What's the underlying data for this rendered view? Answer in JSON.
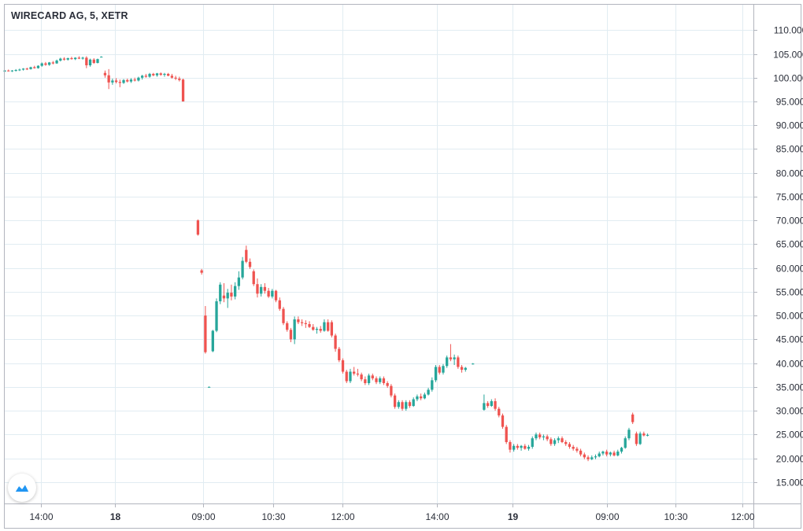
{
  "title": "WIRECARD AG, 5, XETR",
  "colors": {
    "up": "#26a69a",
    "down": "#ef5350",
    "grid": "#e1ecf2",
    "axis_line": "#b2b5be",
    "text": "#2a2e39",
    "logo": "#2196f3"
  },
  "logo_icon": "tradingview-logo-icon",
  "chart_data": {
    "type": "candlestick",
    "title": "WIRECARD AG, 5, XETR",
    "y_axis": {
      "position": "right",
      "range": [
        10.5,
        115.5
      ],
      "ticks": [
        "110.000",
        "105.000",
        "100.000",
        "95.000",
        "90.000",
        "85.000",
        "80.000",
        "75.000",
        "70.000",
        "65.000",
        "60.000",
        "55.000",
        "50.000",
        "45.000",
        "40.000",
        "35.000",
        "30.000",
        "25.000",
        "20.000",
        "15.000"
      ]
    },
    "x_axis": {
      "ticks": [
        "14:00",
        "18",
        "09:00",
        "10:30",
        "12:00",
        "14:00",
        "19",
        "09:00",
        "10:30",
        "12:00"
      ],
      "bold_ticks": [
        "18",
        "19"
      ]
    },
    "grid": true,
    "candles": [
      [
        101.3,
        101.6,
        101.2,
        101.5
      ],
      [
        101.5,
        101.7,
        101.3,
        101.4
      ],
      [
        101.4,
        101.6,
        101.2,
        101.5
      ],
      [
        101.5,
        101.8,
        101.3,
        101.6
      ],
      [
        101.6,
        101.9,
        101.4,
        101.7
      ],
      [
        101.7,
        102.0,
        101.5,
        101.9
      ],
      [
        101.9,
        102.1,
        101.6,
        101.8
      ],
      [
        101.8,
        102.3,
        101.7,
        102.2
      ],
      [
        102.2,
        102.5,
        101.9,
        102.0
      ],
      [
        102.0,
        102.6,
        101.9,
        102.5
      ],
      [
        102.5,
        103.2,
        102.3,
        103.0
      ],
      [
        103.0,
        103.3,
        102.5,
        102.7
      ],
      [
        102.7,
        103.3,
        102.5,
        103.2
      ],
      [
        103.2,
        103.5,
        102.8,
        103.0
      ],
      [
        103.0,
        103.8,
        102.9,
        103.6
      ],
      [
        103.6,
        104.2,
        103.4,
        104.0
      ],
      [
        104.0,
        104.3,
        103.6,
        103.8
      ],
      [
        103.8,
        104.2,
        103.6,
        104.1
      ],
      [
        104.1,
        104.4,
        103.8,
        103.9
      ],
      [
        103.9,
        104.3,
        103.7,
        104.2
      ],
      [
        104.2,
        104.5,
        103.9,
        104.0
      ],
      [
        104.0,
        104.4,
        103.8,
        104.2
      ],
      [
        104.2,
        104.5,
        102.0,
        102.6
      ],
      [
        102.6,
        104.0,
        102.3,
        103.8
      ],
      [
        103.8,
        104.1,
        102.9,
        103.1
      ],
      [
        103.1,
        104.0,
        103.0,
        103.9
      ],
      [
        104.4,
        104.5,
        104.3,
        104.4
      ],
      [
        101.0,
        101.5,
        100.0,
        100.5
      ],
      [
        100.5,
        101.8,
        97.6,
        99.0
      ],
      [
        99.0,
        99.8,
        98.5,
        99.4
      ],
      [
        99.4,
        99.9,
        98.8,
        99.1
      ],
      [
        99.1,
        99.6,
        98.0,
        98.9
      ],
      [
        98.9,
        99.7,
        98.7,
        99.5
      ],
      [
        99.5,
        99.8,
        99.0,
        99.2
      ],
      [
        99.2,
        99.9,
        98.9,
        99.6
      ],
      [
        99.6,
        100.0,
        99.2,
        99.4
      ],
      [
        99.4,
        100.2,
        99.2,
        100.0
      ],
      [
        100.0,
        100.6,
        99.6,
        100.4
      ],
      [
        100.4,
        100.8,
        100.0,
        100.2
      ],
      [
        100.2,
        101.0,
        100.0,
        100.8
      ],
      [
        100.8,
        101.0,
        100.3,
        100.5
      ],
      [
        100.5,
        101.0,
        100.2,
        100.9
      ],
      [
        100.9,
        101.1,
        100.4,
        100.6
      ],
      [
        100.6,
        101.0,
        100.2,
        100.8
      ],
      [
        100.8,
        101.0,
        100.3,
        100.4
      ],
      [
        100.4,
        100.8,
        99.8,
        100.0
      ],
      [
        100.0,
        100.4,
        99.5,
        99.8
      ],
      [
        99.8,
        100.2,
        99.2,
        99.5
      ],
      [
        99.6,
        99.8,
        95.0,
        95.0
      ],
      null,
      null,
      null,
      [
        70.0,
        70.2,
        66.8,
        67.0
      ],
      [
        59.5,
        59.8,
        58.6,
        59.0
      ],
      [
        50.0,
        52.0,
        42.0,
        42.3
      ],
      [
        35.0,
        35.1,
        34.9,
        35.0
      ],
      [
        42.5,
        47.0,
        42.3,
        46.8
      ],
      [
        46.8,
        53.6,
        46.5,
        53.0
      ],
      [
        53.0,
        57.0,
        52.4,
        56.5
      ],
      [
        54.2,
        56.8,
        52.8,
        53.6
      ],
      [
        53.6,
        55.6,
        51.6,
        54.8
      ],
      [
        54.8,
        56.5,
        53.2,
        54.0
      ],
      [
        54.0,
        57.0,
        53.4,
        56.2
      ],
      [
        56.2,
        59.3,
        55.4,
        58.0
      ],
      [
        58.0,
        62.3,
        57.6,
        61.5
      ],
      [
        63.8,
        64.7,
        61.0,
        61.3
      ],
      [
        61.3,
        62.0,
        59.8,
        60.2
      ],
      [
        59.3,
        59.7,
        56.2,
        56.6
      ],
      [
        56.6,
        57.8,
        53.8,
        54.6
      ],
      [
        54.6,
        56.6,
        54.0,
        56.0
      ],
      [
        56.0,
        56.8,
        54.6,
        55.2
      ],
      [
        55.2,
        55.8,
        53.7,
        54.0
      ],
      [
        54.0,
        55.6,
        53.6,
        55.2
      ],
      [
        55.2,
        55.4,
        52.8,
        53.2
      ],
      [
        53.2,
        53.8,
        51.0,
        51.4
      ],
      [
        51.4,
        51.8,
        48.0,
        48.4
      ],
      [
        48.4,
        48.8,
        46.6,
        47.0
      ],
      [
        47.0,
        47.4,
        44.4,
        45.0
      ],
      [
        45.0,
        49.8,
        44.0,
        49.2
      ],
      [
        49.2,
        49.8,
        48.2,
        48.6
      ],
      [
        48.6,
        49.2,
        47.8,
        48.4
      ],
      [
        48.4,
        49.0,
        47.4,
        48.2
      ],
      [
        48.2,
        48.8,
        47.4,
        47.6
      ],
      [
        47.6,
        48.2,
        46.8,
        47.0
      ],
      [
        47.0,
        47.6,
        46.2,
        47.2
      ],
      [
        47.2,
        47.8,
        46.4,
        46.8
      ],
      [
        46.8,
        49.2,
        46.6,
        48.6
      ],
      [
        48.6,
        49.2,
        46.6,
        46.8
      ],
      [
        48.6,
        49.0,
        45.4,
        45.8
      ],
      [
        45.8,
        46.2,
        42.4,
        43.0
      ],
      [
        43.0,
        43.4,
        40.2,
        40.6
      ],
      [
        40.6,
        41.0,
        37.8,
        38.2
      ],
      [
        38.2,
        38.6,
        35.8,
        36.2
      ],
      [
        36.2,
        38.8,
        35.8,
        38.2
      ],
      [
        38.2,
        39.2,
        37.4,
        37.8
      ],
      [
        37.8,
        38.8,
        37.2,
        37.6
      ],
      [
        37.6,
        38.0,
        36.2,
        36.6
      ],
      [
        36.6,
        37.2,
        35.4,
        35.8
      ],
      [
        35.8,
        37.8,
        35.4,
        37.4
      ],
      [
        37.4,
        37.8,
        36.4,
        36.8
      ],
      [
        36.8,
        37.2,
        35.6,
        36.0
      ],
      [
        36.0,
        37.2,
        35.6,
        36.8
      ],
      [
        36.8,
        37.2,
        35.4,
        35.8
      ],
      [
        35.8,
        36.2,
        34.8,
        35.2
      ],
      [
        35.2,
        35.6,
        32.8,
        33.2
      ],
      [
        33.2,
        33.6,
        30.4,
        30.8
      ],
      [
        30.8,
        32.2,
        30.4,
        31.8
      ],
      [
        31.8,
        32.2,
        30.0,
        30.4
      ],
      [
        30.4,
        32.2,
        30.0,
        31.8
      ],
      [
        31.8,
        32.2,
        30.6,
        31.0
      ],
      [
        31.0,
        32.8,
        30.8,
        32.4
      ],
      [
        32.4,
        33.4,
        32.0,
        33.0
      ],
      [
        33.0,
        33.6,
        32.2,
        32.6
      ],
      [
        32.6,
        33.8,
        32.4,
        33.4
      ],
      [
        33.4,
        34.8,
        33.2,
        34.4
      ],
      [
        34.4,
        37.0,
        34.0,
        36.4
      ],
      [
        36.4,
        39.6,
        36.0,
        39.2
      ],
      [
        39.2,
        39.6,
        37.6,
        38.0
      ],
      [
        38.0,
        39.8,
        37.6,
        39.4
      ],
      [
        39.4,
        41.6,
        39.0,
        41.2
      ],
      [
        41.2,
        44.0,
        40.4,
        40.8
      ],
      [
        40.8,
        41.8,
        39.6,
        41.2
      ],
      [
        41.2,
        41.6,
        38.8,
        39.2
      ],
      [
        39.2,
        39.6,
        38.0,
        38.6
      ],
      [
        38.6,
        39.2,
        38.2,
        39.0
      ],
      null,
      [
        39.8,
        40.0,
        39.7,
        39.9
      ],
      null,
      null,
      [
        30.2,
        33.4,
        30.0,
        31.6
      ],
      [
        31.6,
        32.0,
        30.6,
        31.0
      ],
      [
        31.0,
        32.4,
        30.8,
        32.0
      ],
      [
        32.0,
        32.6,
        30.0,
        30.4
      ],
      [
        30.4,
        30.8,
        28.6,
        29.0
      ],
      [
        29.0,
        29.4,
        26.2,
        26.6
      ],
      [
        26.6,
        27.0,
        23.0,
        23.4
      ],
      [
        23.4,
        23.8,
        21.2,
        21.8
      ],
      [
        21.8,
        23.0,
        21.4,
        22.6
      ],
      [
        22.6,
        23.0,
        21.8,
        22.2
      ],
      [
        22.2,
        22.8,
        21.6,
        22.6
      ],
      [
        22.6,
        23.0,
        21.8,
        22.0
      ],
      [
        22.0,
        22.8,
        21.6,
        22.4
      ],
      [
        22.4,
        24.6,
        22.0,
        24.2
      ],
      [
        24.2,
        25.4,
        23.8,
        25.0
      ],
      [
        25.0,
        25.4,
        24.0,
        24.4
      ],
      [
        24.4,
        25.0,
        23.8,
        24.6
      ],
      [
        24.6,
        25.0,
        23.6,
        24.0
      ],
      [
        24.0,
        24.4,
        22.6,
        23.0
      ],
      [
        23.0,
        24.2,
        22.6,
        23.8
      ],
      [
        23.8,
        24.6,
        23.2,
        24.2
      ],
      [
        24.2,
        24.6,
        23.2,
        23.4
      ],
      [
        23.4,
        23.8,
        22.6,
        23.0
      ],
      [
        23.0,
        23.4,
        22.0,
        22.4
      ],
      [
        22.4,
        22.8,
        21.6,
        22.0
      ],
      [
        22.0,
        22.4,
        21.2,
        21.6
      ],
      [
        21.6,
        22.0,
        20.4,
        20.8
      ],
      [
        20.8,
        21.2,
        19.8,
        20.2
      ],
      [
        20.2,
        20.6,
        19.4,
        19.8
      ],
      [
        19.8,
        20.6,
        19.6,
        20.2
      ],
      [
        20.2,
        20.8,
        19.8,
        20.4
      ],
      [
        20.4,
        21.4,
        20.2,
        21.0
      ],
      [
        21.0,
        21.6,
        20.6,
        21.4
      ],
      [
        21.4,
        21.8,
        20.4,
        20.8
      ],
      [
        20.8,
        21.4,
        20.4,
        21.2
      ],
      [
        21.2,
        21.6,
        20.4,
        20.6
      ],
      [
        20.6,
        21.8,
        20.4,
        21.4
      ],
      [
        21.4,
        22.4,
        21.0,
        22.2
      ],
      [
        22.2,
        24.6,
        22.0,
        24.2
      ],
      [
        24.2,
        26.4,
        23.8,
        26.0
      ],
      [
        29.2,
        29.6,
        27.2,
        27.6
      ],
      [
        25.2,
        25.6,
        22.6,
        23.0
      ],
      [
        23.0,
        25.6,
        22.8,
        25.2
      ],
      [
        25.2,
        25.6,
        24.6,
        24.8
      ],
      [
        24.8,
        25.2,
        24.6,
        24.9
      ]
    ]
  }
}
